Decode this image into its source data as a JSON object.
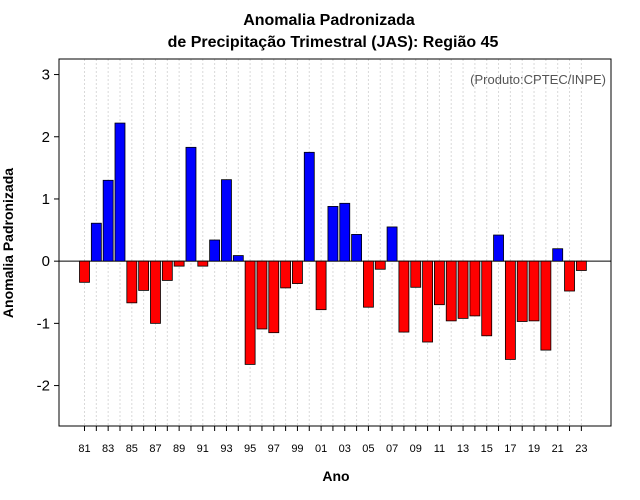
{
  "chart_data": {
    "type": "bar",
    "title_line1": "Anomalia Padronizada",
    "title_line2": "de Precipitação Trimestral (JAS): Região 45",
    "xlabel": "Ano",
    "ylabel": "Anomalia Padronizada",
    "annotation": "(Produto:CPTEC/INPE)",
    "ylim": [
      -2.65,
      3.25
    ],
    "yticks": [
      -2,
      -1,
      0,
      1,
      2,
      3
    ],
    "ytick_labels": [
      "-2",
      "-1",
      "0",
      "1",
      "2",
      "3"
    ],
    "categories": [
      "81",
      "82",
      "83",
      "84",
      "85",
      "86",
      "87",
      "88",
      "89",
      "90",
      "91",
      "92",
      "93",
      "94",
      "95",
      "96",
      "97",
      "98",
      "99",
      "00",
      "01",
      "02",
      "03",
      "04",
      "05",
      "06",
      "07",
      "08",
      "09",
      "10",
      "11",
      "12",
      "13",
      "14",
      "15",
      "16",
      "17",
      "18",
      "19",
      "20",
      "21",
      "22",
      "23"
    ],
    "xtick_labels": [
      "81",
      "83",
      "85",
      "87",
      "89",
      "91",
      "93",
      "95",
      "97",
      "99",
      "01",
      "03",
      "05",
      "07",
      "09",
      "11",
      "13",
      "15",
      "17",
      "19",
      "21",
      "23"
    ],
    "values": [
      -0.34,
      0.61,
      1.3,
      2.22,
      -0.67,
      -0.47,
      -1.0,
      -0.31,
      -0.08,
      1.83,
      -0.08,
      0.34,
      1.31,
      0.09,
      -1.66,
      -1.09,
      -1.15,
      -0.43,
      -0.36,
      1.75,
      -0.78,
      0.88,
      0.93,
      0.43,
      -0.74,
      -0.13,
      0.55,
      -1.14,
      -0.42,
      -1.3,
      -0.7,
      -0.96,
      -0.92,
      -0.88,
      -1.2,
      0.42,
      -1.58,
      -0.97,
      -0.96,
      -1.43,
      0.2,
      -0.48,
      -0.15
    ],
    "positive_color": "#0000ff",
    "negative_color": "#ff0000",
    "grid_color": "#d9d9d9"
  }
}
